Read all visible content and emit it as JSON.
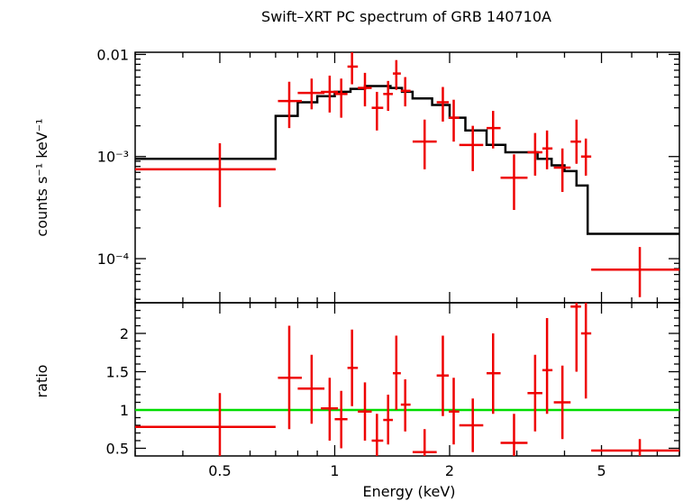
{
  "chart_data": {
    "type": "line",
    "title": "Swift–XRT PC spectrum of GRB 140710A",
    "xlabel": "Energy (keV)",
    "xscale": "log",
    "xlim": [
      0.3,
      8.0
    ],
    "xticks": [
      {
        "value": 0.5,
        "label": "0.5"
      },
      {
        "value": 1,
        "label": "1"
      },
      {
        "value": 2,
        "label": "2"
      },
      {
        "value": 5,
        "label": "5"
      }
    ],
    "panels": [
      {
        "name": "spectrum",
        "ylabel": "counts s⁻¹ keV⁻¹",
        "yscale": "log",
        "ylim": [
          3.7e-05,
          0.0105
        ],
        "yticks": [
          {
            "value": 0.01,
            "label": "0.01"
          },
          {
            "value": 0.001,
            "label": "10⁻³"
          },
          {
            "value": 0.0001,
            "label": "10⁻⁴"
          }
        ],
        "series": [
          {
            "name": "model",
            "style": "step",
            "color": "#000000",
            "edges": [
              0.3,
              0.7,
              0.8,
              0.9,
              1.0,
              1.1,
              1.2,
              1.3,
              1.4,
              1.5,
              1.6,
              1.8,
              2.0,
              2.2,
              2.5,
              2.8,
              3.1,
              3.4,
              3.7,
              4.0,
              4.3,
              4.6,
              8.0
            ],
            "values": [
              0.00095,
              0.0025,
              0.0034,
              0.0039,
              0.0043,
              0.0046,
              0.0049,
              0.0049,
              0.0047,
              0.0043,
              0.0037,
              0.0032,
              0.0024,
              0.0018,
              0.0013,
              0.0011,
              0.0011,
              0.00095,
              0.00082,
              0.00072,
              0.00052,
              0.000175
            ]
          },
          {
            "name": "data",
            "style": "errorbar",
            "color": "#ee0000",
            "points": [
              {
                "x": 0.5,
                "xlo": 0.3,
                "xhi": 0.7,
                "y": 0.00075,
                "ylo": 0.00032,
                "yhi": 0.00135
              },
              {
                "x": 0.76,
                "xlo": 0.71,
                "xhi": 0.82,
                "y": 0.0035,
                "ylo": 0.0019,
                "yhi": 0.0054
              },
              {
                "x": 0.87,
                "xlo": 0.8,
                "xhi": 0.94,
                "y": 0.0042,
                "ylo": 0.0029,
                "yhi": 0.0058
              },
              {
                "x": 0.97,
                "xlo": 0.92,
                "xhi": 1.02,
                "y": 0.0043,
                "ylo": 0.0027,
                "yhi": 0.0062
              },
              {
                "x": 1.04,
                "xlo": 1.0,
                "xhi": 1.08,
                "y": 0.0041,
                "ylo": 0.0024,
                "yhi": 0.0058
              },
              {
                "x": 1.11,
                "xlo": 1.08,
                "xhi": 1.15,
                "y": 0.0076,
                "ylo": 0.0051,
                "yhi": 0.0105
              },
              {
                "x": 1.2,
                "xlo": 1.15,
                "xhi": 1.25,
                "y": 0.0047,
                "ylo": 0.0031,
                "yhi": 0.0066
              },
              {
                "x": 1.29,
                "xlo": 1.25,
                "xhi": 1.34,
                "y": 0.003,
                "ylo": 0.0018,
                "yhi": 0.0043
              },
              {
                "x": 1.38,
                "xlo": 1.34,
                "xhi": 1.42,
                "y": 0.0041,
                "ylo": 0.0028,
                "yhi": 0.0055
              },
              {
                "x": 1.45,
                "xlo": 1.42,
                "xhi": 1.49,
                "y": 0.0065,
                "ylo": 0.0045,
                "yhi": 0.0088
              },
              {
                "x": 1.53,
                "xlo": 1.49,
                "xhi": 1.58,
                "y": 0.0044,
                "ylo": 0.0031,
                "yhi": 0.006
              },
              {
                "x": 1.72,
                "xlo": 1.6,
                "xhi": 1.85,
                "y": 0.0014,
                "ylo": 0.00075,
                "yhi": 0.0023
              },
              {
                "x": 1.92,
                "xlo": 1.85,
                "xhi": 1.99,
                "y": 0.0034,
                "ylo": 0.0022,
                "yhi": 0.0048
              },
              {
                "x": 2.05,
                "xlo": 1.99,
                "xhi": 2.12,
                "y": 0.0024,
                "ylo": 0.0014,
                "yhi": 0.0036
              },
              {
                "x": 2.3,
                "xlo": 2.12,
                "xhi": 2.45,
                "y": 0.0013,
                "ylo": 0.00072,
                "yhi": 0.002
              },
              {
                "x": 2.6,
                "xlo": 2.5,
                "xhi": 2.72,
                "y": 0.0019,
                "ylo": 0.0012,
                "yhi": 0.0028
              },
              {
                "x": 2.95,
                "xlo": 2.72,
                "xhi": 3.2,
                "y": 0.00062,
                "ylo": 0.0003,
                "yhi": 0.00105
              },
              {
                "x": 3.35,
                "xlo": 3.2,
                "xhi": 3.5,
                "y": 0.0011,
                "ylo": 0.00065,
                "yhi": 0.0017
              },
              {
                "x": 3.6,
                "xlo": 3.5,
                "xhi": 3.72,
                "y": 0.0012,
                "ylo": 0.00075,
                "yhi": 0.0018
              },
              {
                "x": 3.95,
                "xlo": 3.75,
                "xhi": 4.15,
                "y": 0.00078,
                "ylo": 0.00045,
                "yhi": 0.0012
              },
              {
                "x": 4.3,
                "xlo": 4.15,
                "xhi": 4.42,
                "y": 0.0014,
                "ylo": 0.00085,
                "yhi": 0.0023
              },
              {
                "x": 4.55,
                "xlo": 4.42,
                "xhi": 4.7,
                "y": 0.001,
                "ylo": 0.00065,
                "yhi": 0.0015
              },
              {
                "x": 6.3,
                "xlo": 4.7,
                "xhi": 8.0,
                "y": 7.8e-05,
                "ylo": 4.2e-05,
                "yhi": 0.00013
              }
            ]
          }
        ]
      },
      {
        "name": "ratio",
        "ylabel": "ratio",
        "yscale": "linear",
        "ylim": [
          0.4,
          2.4
        ],
        "yticks": [
          {
            "value": 0.5,
            "label": "0.5"
          },
          {
            "value": 1,
            "label": "1"
          },
          {
            "value": 1.5,
            "label": "1.5"
          },
          {
            "value": 2,
            "label": "2"
          }
        ],
        "series": [
          {
            "name": "unity",
            "style": "hline",
            "color": "#00dd00",
            "y": 1.0
          },
          {
            "name": "ratio",
            "style": "errorbar",
            "color": "#ee0000",
            "points": [
              {
                "x": 0.5,
                "xlo": 0.3,
                "xhi": 0.7,
                "y": 0.78,
                "ylo": 0.4,
                "yhi": 1.22
              },
              {
                "x": 0.76,
                "xlo": 0.71,
                "xhi": 0.82,
                "y": 1.42,
                "ylo": 0.75,
                "yhi": 2.1
              },
              {
                "x": 0.87,
                "xlo": 0.8,
                "xhi": 0.94,
                "y": 1.28,
                "ylo": 0.82,
                "yhi": 1.72
              },
              {
                "x": 0.97,
                "xlo": 0.92,
                "xhi": 1.02,
                "y": 1.02,
                "ylo": 0.6,
                "yhi": 1.42
              },
              {
                "x": 1.04,
                "xlo": 1.0,
                "xhi": 1.08,
                "y": 0.88,
                "ylo": 0.5,
                "yhi": 1.25
              },
              {
                "x": 1.11,
                "xlo": 1.08,
                "xhi": 1.15,
                "y": 1.55,
                "ylo": 1.05,
                "yhi": 2.05
              },
              {
                "x": 1.2,
                "xlo": 1.15,
                "xhi": 1.25,
                "y": 0.98,
                "ylo": 0.6,
                "yhi": 1.36
              },
              {
                "x": 1.29,
                "xlo": 1.25,
                "xhi": 1.34,
                "y": 0.6,
                "ylo": 0.4,
                "yhi": 0.95
              },
              {
                "x": 1.38,
                "xlo": 1.34,
                "xhi": 1.42,
                "y": 0.87,
                "ylo": 0.55,
                "yhi": 1.2
              },
              {
                "x": 1.45,
                "xlo": 1.42,
                "xhi": 1.49,
                "y": 1.48,
                "ylo": 1.0,
                "yhi": 1.97
              },
              {
                "x": 1.53,
                "xlo": 1.49,
                "xhi": 1.58,
                "y": 1.07,
                "ylo": 0.72,
                "yhi": 1.4
              },
              {
                "x": 1.72,
                "xlo": 1.6,
                "xhi": 1.85,
                "y": 0.45,
                "ylo": 0.4,
                "yhi": 0.75
              },
              {
                "x": 1.92,
                "xlo": 1.85,
                "xhi": 1.99,
                "y": 1.45,
                "ylo": 0.92,
                "yhi": 1.97
              },
              {
                "x": 2.05,
                "xlo": 1.99,
                "xhi": 2.12,
                "y": 0.98,
                "ylo": 0.55,
                "yhi": 1.42
              },
              {
                "x": 2.3,
                "xlo": 2.12,
                "xhi": 2.45,
                "y": 0.8,
                "ylo": 0.45,
                "yhi": 1.15
              },
              {
                "x": 2.6,
                "xlo": 2.5,
                "xhi": 2.72,
                "y": 1.48,
                "ylo": 0.95,
                "yhi": 2.0
              },
              {
                "x": 2.95,
                "xlo": 2.72,
                "xhi": 3.2,
                "y": 0.57,
                "ylo": 0.4,
                "yhi": 0.95
              },
              {
                "x": 3.35,
                "xlo": 3.2,
                "xhi": 3.5,
                "y": 1.22,
                "ylo": 0.72,
                "yhi": 1.72
              },
              {
                "x": 3.6,
                "xlo": 3.5,
                "xhi": 3.72,
                "y": 1.52,
                "ylo": 0.95,
                "yhi": 2.2
              },
              {
                "x": 3.95,
                "xlo": 3.75,
                "xhi": 4.15,
                "y": 1.1,
                "ylo": 0.62,
                "yhi": 1.58
              },
              {
                "x": 4.3,
                "xlo": 4.15,
                "xhi": 4.42,
                "y": 2.35,
                "ylo": 1.5,
                "yhi": 2.4
              },
              {
                "x": 4.55,
                "xlo": 4.42,
                "xhi": 4.7,
                "y": 2.0,
                "ylo": 1.15,
                "yhi": 2.4
              },
              {
                "x": 6.3,
                "xlo": 4.7,
                "xhi": 8.0,
                "y": 0.47,
                "ylo": 0.4,
                "yhi": 0.62
              }
            ]
          }
        ]
      }
    ]
  }
}
